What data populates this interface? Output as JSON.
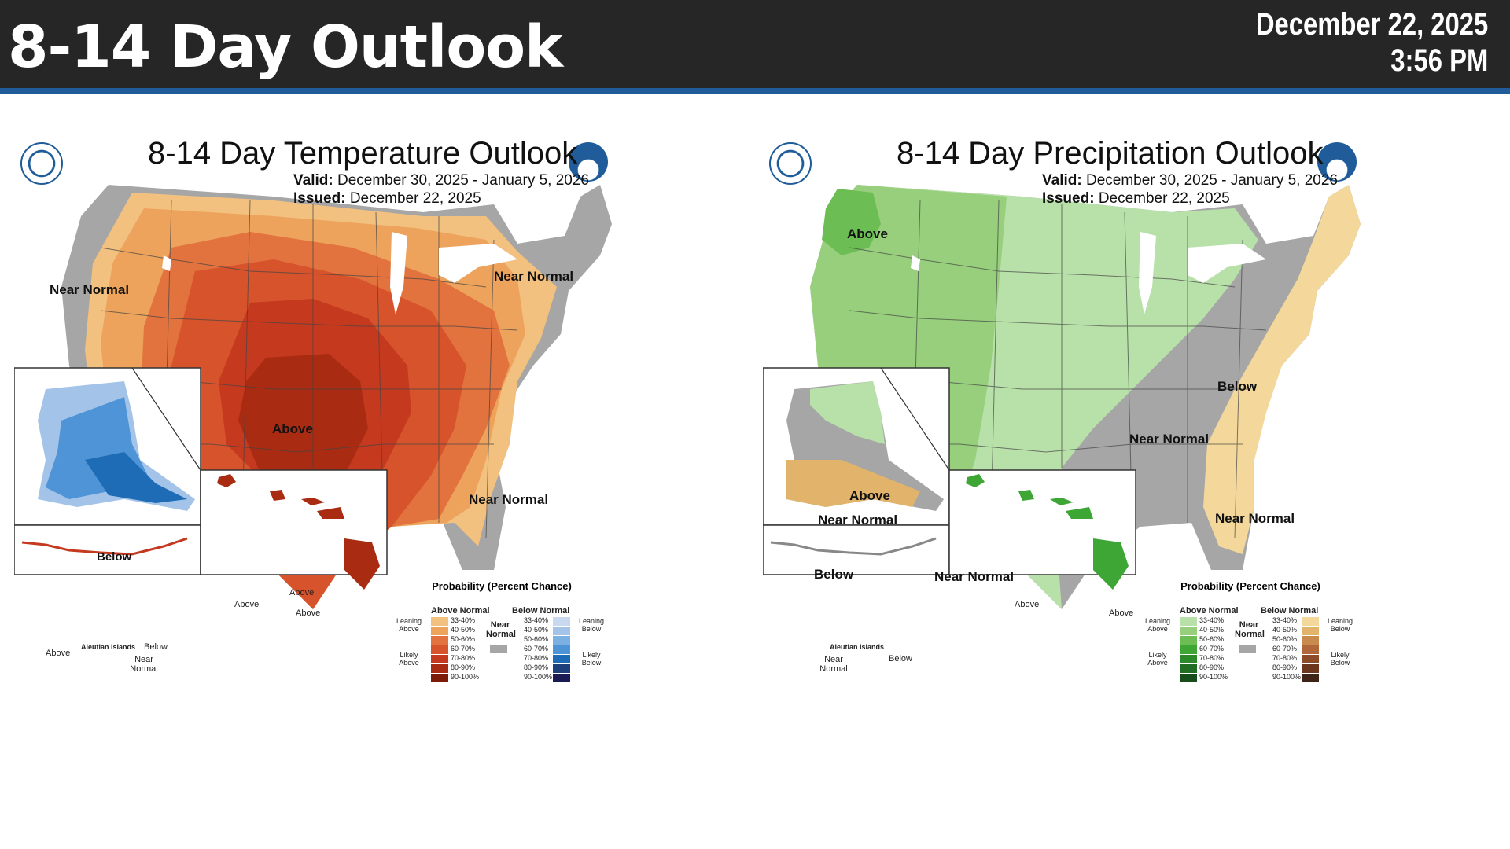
{
  "header": {
    "title": "8-14 Day Outlook",
    "date": "December 22, 2025",
    "time": "3:56 PM"
  },
  "colors": {
    "header_bg": "#262626",
    "header_accent": "#1f5c99",
    "near_normal": "#a6a6a6",
    "above_temp": [
      "#f2c07f",
      "#eda35c",
      "#e2733e",
      "#d6532c",
      "#c5391f",
      "#a92c12",
      "#7c1c08"
    ],
    "below_temp": [
      "#c8d8ee",
      "#a3c4e8",
      "#7ab1e2",
      "#4e94d6",
      "#1f6cb6",
      "#1d3f7a",
      "#1a1a55"
    ],
    "above_precip": [
      "#b8e0a9",
      "#97cf7c",
      "#6dbd55",
      "#3da635",
      "#2c8a2a",
      "#216d23",
      "#174d18"
    ],
    "below_precip": [
      "#f4d89b",
      "#e2b36b",
      "#c98a4d",
      "#b0673a",
      "#8e4b28",
      "#6b361c",
      "#3e2416"
    ]
  },
  "temperature": {
    "title": "8-14 Day Temperature Outlook",
    "valid_label": "Valid:",
    "valid": "December 30, 2025 - January 5, 2026",
    "issued_label": "Issued:",
    "issued": "December 22, 2025",
    "labels": {
      "near_normal_west": "Near Normal",
      "near_normal_ne": "Near Normal",
      "above": "Above",
      "near_normal_fl": "Near Normal",
      "alaska_below": "Below",
      "hawaii_above_1": "Above",
      "hawaii_above_2": "Above",
      "hawaii_above_3": "Above",
      "aleutian_title": "Aleutian Islands",
      "aleutian_above": "Above",
      "aleutian_below": "Below",
      "aleutian_near_normal": "Near Normal"
    }
  },
  "precipitation": {
    "title": "8-14 Day Precipitation Outlook",
    "valid_label": "Valid:",
    "valid": "December 30, 2025 - January 5, 2026",
    "issued_label": "Issued:",
    "issued": "December 22, 2025",
    "labels": {
      "above_nw": "Above",
      "below_east": "Below",
      "near_normal_se": "Near Normal",
      "near_normal_fl": "Near Normal",
      "alaska_above": "Above",
      "alaska_near_normal": "Near Normal",
      "alaska_below": "Below",
      "alaska_near_normal_se": "Near Normal",
      "hawaii_above_1": "Above",
      "hawaii_above_2": "Above",
      "aleutian_title": "Aleutian Islands",
      "aleutian_near_normal": "Near Normal",
      "aleutian_below": "Below"
    }
  },
  "legend": {
    "title": "Probability (Percent Chance)",
    "above_header": "Above Normal",
    "below_header": "Below Normal",
    "near_normal": "Near Normal",
    "leaning_above": "Leaning Above",
    "likely_above": "Likely Above",
    "leaning_below": "Leaning Below",
    "likely_below": "Likely Below",
    "ranges": [
      "33-40%",
      "40-50%",
      "50-60%",
      "60-70%",
      "70-80%",
      "80-90%",
      "90-100%"
    ]
  }
}
